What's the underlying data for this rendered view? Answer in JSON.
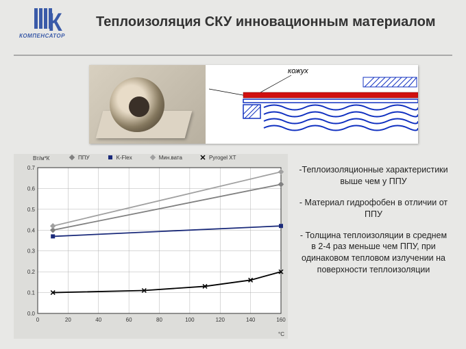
{
  "logo": {
    "text": "КОМПЕНСАТОР"
  },
  "title": "Теплоизоляция СКУ инновационным материалом",
  "diagram_label": "кожух",
  "chart": {
    "type": "line",
    "ylabel": "Вт/м*К",
    "xlabel": "°С",
    "xlim": [
      0,
      160
    ],
    "xtick_step": 20,
    "ylim": [
      0.0,
      0.7
    ],
    "ytick_step": 0.1,
    "background_color": "#ffffff",
    "grid_color": "#b0b0b0",
    "series": [
      {
        "name": "ППУ",
        "color": "#808080",
        "marker": "diamond",
        "data": [
          [
            10,
            0.4
          ],
          [
            160,
            0.62
          ]
        ]
      },
      {
        "name": "K-Flex",
        "color": "#1a2a7a",
        "marker": "square",
        "data": [
          [
            10,
            0.37
          ],
          [
            160,
            0.42
          ]
        ]
      },
      {
        "name": "Мин.вата",
        "color": "#a0a0a0",
        "marker": "diamond",
        "data": [
          [
            10,
            0.42
          ],
          [
            160,
            0.68
          ]
        ]
      },
      {
        "name": "Pyrogel XT",
        "color": "#000000",
        "marker": "x",
        "data": [
          [
            10,
            0.1
          ],
          [
            70,
            0.11
          ],
          [
            110,
            0.13
          ],
          [
            140,
            0.16
          ],
          [
            160,
            0.2
          ]
        ]
      }
    ]
  },
  "bullets": {
    "b1": "-Теплоизоляционные характеристики выше чем у ППУ",
    "b2": "- Материал гидрофобен в отличии от ППУ",
    "b3": "- Толщина теплоизоляции в среднем в 2-4 раз меньше чем ППУ, при одинаковом тепловом излучении на поверхности теплоизоляции"
  },
  "diagram_colors": {
    "blue": "#1030c0",
    "red": "#d01010",
    "hatch_blue": "#1030c0"
  }
}
